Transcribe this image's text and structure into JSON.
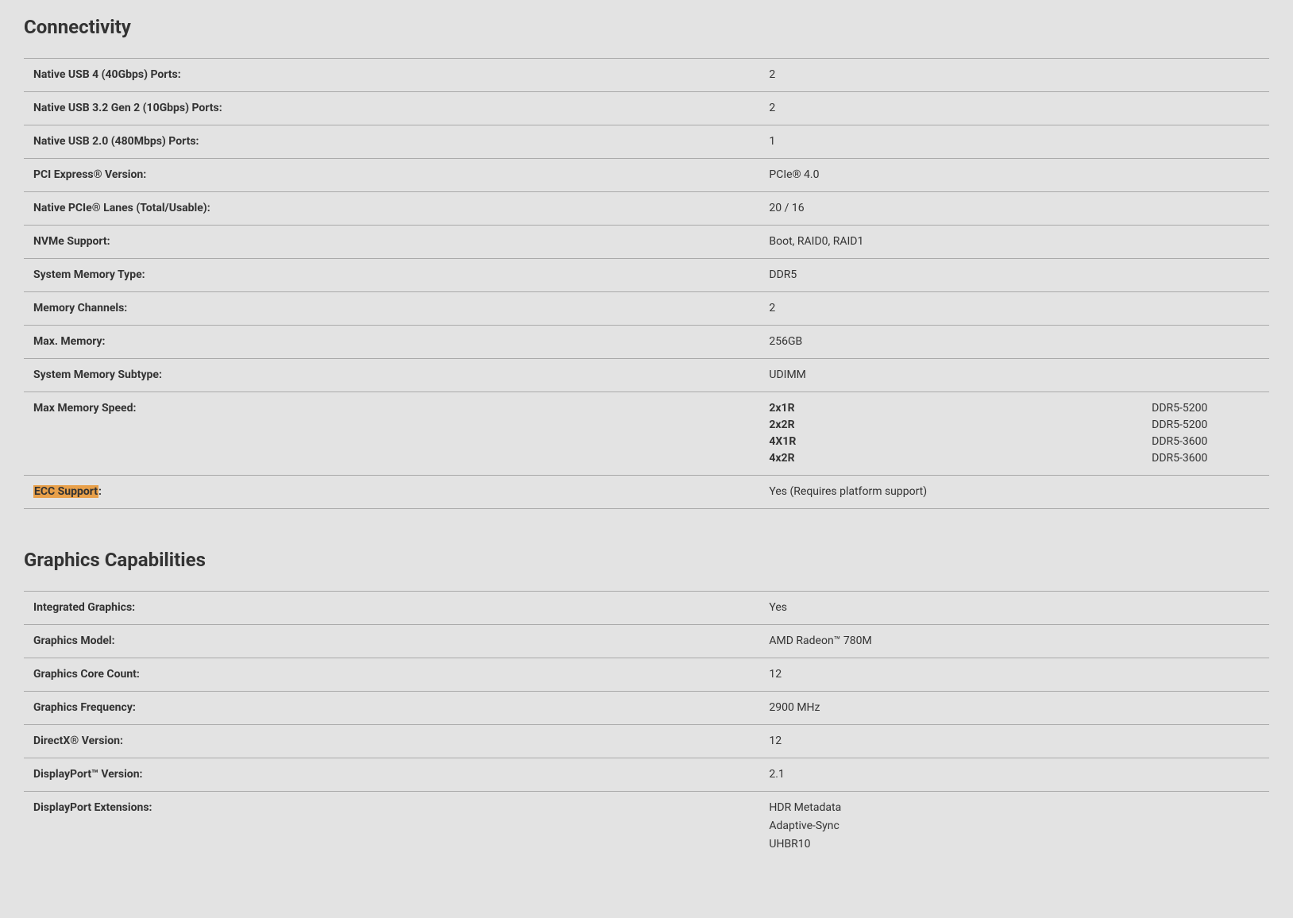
{
  "colors": {
    "background": "#e3e3e3",
    "text": "#333333",
    "border": "#aaaaaa",
    "highlight": "#e8a04a"
  },
  "typography": {
    "heading_fontsize": 24,
    "row_fontsize": 14,
    "heading_weight": 700,
    "label_weight": 700,
    "value_weight": 400
  },
  "sections": {
    "connectivity": {
      "title": "Connectivity",
      "rows": {
        "usb4": {
          "label": "Native USB 4 (40Gbps) Ports:",
          "value": "2"
        },
        "usb32": {
          "label": "Native USB 3.2 Gen 2 (10Gbps) Ports:",
          "value": "2"
        },
        "usb20": {
          "label": "Native USB 2.0 (480Mbps) Ports:",
          "value": "1"
        },
        "pciv": {
          "label": "PCI Express® Version:",
          "value": "PCIe® 4.0"
        },
        "pcie_lanes": {
          "label": "Native PCIe® Lanes (Total/Usable):",
          "value": "20 / 16"
        },
        "nvme": {
          "label": "NVMe Support:",
          "value": "Boot, RAID0, RAID1"
        },
        "mem_type": {
          "label": "System Memory Type:",
          "value": "DDR5"
        },
        "mem_channels": {
          "label": "Memory Channels:",
          "value": "2"
        },
        "max_mem": {
          "label": "Max. Memory:",
          "value": "256GB"
        },
        "mem_subtype": {
          "label": "System Memory Subtype:",
          "value": "UDIMM"
        },
        "max_mem_speed": {
          "label": "Max Memory Speed:",
          "configs": [
            {
              "config": "2x1R",
              "speed": "DDR5-5200"
            },
            {
              "config": "2x2R",
              "speed": "DDR5-5200"
            },
            {
              "config": "4X1R",
              "speed": "DDR5-3600"
            },
            {
              "config": "4x2R",
              "speed": "DDR5-3600"
            }
          ]
        },
        "ecc": {
          "label_hl": "ECC Support",
          "colon": ":",
          "value": "Yes (Requires platform support)"
        }
      }
    },
    "graphics": {
      "title": "Graphics Capabilities",
      "rows": {
        "igpu": {
          "label": "Integrated Graphics:",
          "value": "Yes"
        },
        "model": {
          "label": "Graphics Model:",
          "value": "AMD Radeon™ 780M"
        },
        "cores": {
          "label": "Graphics Core Count:",
          "value": "12"
        },
        "freq": {
          "label": "Graphics Frequency:",
          "value": "2900 MHz"
        },
        "dx": {
          "label": "DirectX® Version:",
          "value": "12"
        },
        "dp": {
          "label": "DisplayPort™ Version:",
          "value": "2.1"
        },
        "dp_ext": {
          "label": "DisplayPort Extensions:",
          "lines": [
            "HDR Metadata",
            "Adaptive-Sync",
            "UHBR10"
          ]
        }
      }
    }
  }
}
